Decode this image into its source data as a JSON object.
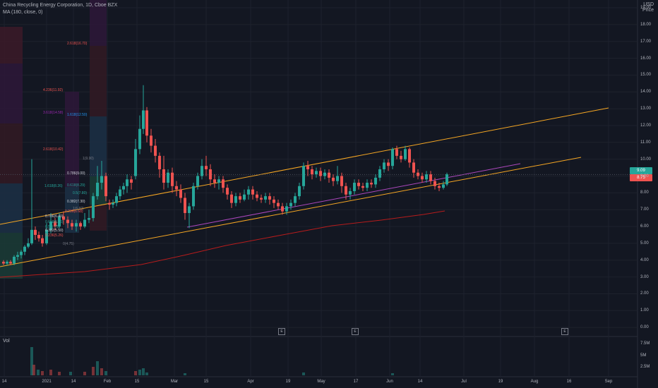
{
  "legend": {
    "title": "China Recycling Energy Corporation, 1D, Cboe BZX",
    "ma": "MA (180, close, 0)"
  },
  "volume_label": "Vol",
  "currency": "USD",
  "currency_sub": "Price",
  "price_tags": [
    {
      "text": "9.09",
      "color": "#26a69a"
    },
    {
      "text": "8.75",
      "color": "#ef5350"
    }
  ],
  "yaxis_ticks": [
    "19.00",
    "18.00",
    "17.00",
    "16.00",
    "15.00",
    "14.00",
    "13.00",
    "12.00",
    "11.00",
    "10.00",
    "9.00",
    "8.00",
    "7.00",
    "6.00",
    "5.00",
    "4.00",
    "3.00",
    "2.00",
    "1.00",
    "0.00"
  ],
  "volume_ticks": [
    "7.5M",
    "5M",
    "2.5M"
  ],
  "xaxis_ticks": [
    "14",
    "2021",
    "14",
    "Feb",
    "15",
    "Mar",
    "15",
    "Apr",
    "19",
    "May",
    "17",
    "Jun",
    "14",
    "Jul",
    "19",
    "Aug",
    "16",
    "Sep"
  ],
  "earnings_label": "E",
  "fib_labels": [
    {
      "text": "2.618(16.70)",
      "color": "#ef5350"
    },
    {
      "text": "4.236(11.92)",
      "color": "#ef5350"
    },
    {
      "text": "3.618(14.58)",
      "color": "#9c27b0"
    },
    {
      "text": "1.618(12.50)",
      "color": "#2196f3"
    },
    {
      "text": "2.618(10.42)",
      "color": "#ef5350"
    },
    {
      "text": "1(9.90)",
      "color": "#787b86"
    },
    {
      "text": "0.786(9.00)",
      "color": "#d1d4dc"
    },
    {
      "text": "1.618(8.26)",
      "color": "#26a69a"
    },
    {
      "text": "0.618(8.29)",
      "color": "#26a69a"
    },
    {
      "text": "0.5(7.80)",
      "color": "#26a69a"
    },
    {
      "text": "0.382(7.30)",
      "color": "#d1d4dc"
    },
    {
      "text": "1(6.92)",
      "color": "#787b86"
    },
    {
      "text": "0.236(6.68)",
      "color": "#ef5350"
    },
    {
      "text": "0.786(6.40)",
      "color": "#d1d4dc"
    },
    {
      "text": "0.618(6.06)",
      "color": "#26a69a"
    },
    {
      "text": "0.5(5.75)",
      "color": "#26a69a"
    },
    {
      "text": "0.382(5.50)",
      "color": "#d1d4dc"
    },
    {
      "text": "0.236(5.26)",
      "color": "#ef5350"
    },
    {
      "text": "0(4.75)",
      "color": "#787b86"
    }
  ],
  "colors": {
    "up": "#26a69a",
    "down": "#ef5350",
    "channel": "#f5a623",
    "ma": "#b71c1c",
    "trend": "#ab47bc",
    "background": "#131722"
  }
}
